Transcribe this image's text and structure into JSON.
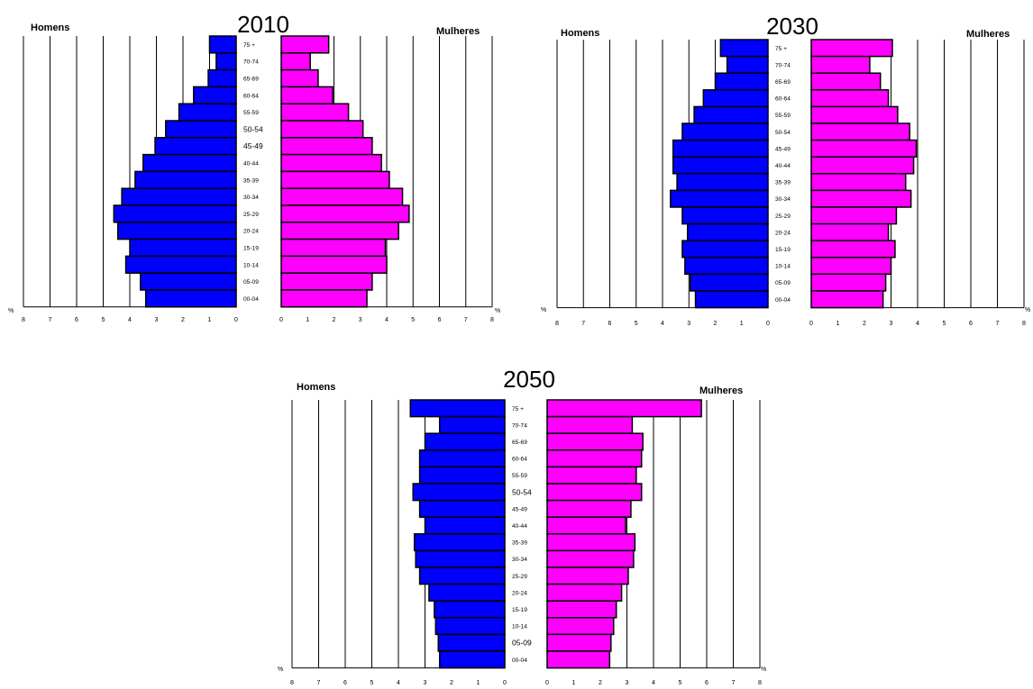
{
  "colors": {
    "male": "#0000ff",
    "female": "#ff00ff",
    "stroke": "#000000",
    "grid": "#000000"
  },
  "chart_data": [
    {
      "type": "bar",
      "title": "2010",
      "left_label": "Homens",
      "right_label": "Mulheres",
      "unit_label": "%",
      "xlim": [
        0,
        8
      ],
      "ticks": [
        "0",
        "1",
        "2",
        "3",
        "4",
        "5",
        "6",
        "7",
        "8"
      ],
      "ticks_reversed": [
        "8",
        "7",
        "6",
        "5",
        "4",
        "3",
        "2",
        "1",
        "0"
      ],
      "categories": [
        "75 +",
        "70-74",
        "65-69",
        "60-64",
        "55-59",
        "50-54",
        "45-49",
        "40-44",
        "35-39",
        "30-34",
        "25-29",
        "20-24",
        "15-19",
        "10-14",
        "05-09",
        "00-04"
      ],
      "series": [
        {
          "name": "Homens",
          "values": [
            1.0,
            0.75,
            1.05,
            1.6,
            2.15,
            2.65,
            3.05,
            3.5,
            3.8,
            4.3,
            4.6,
            4.45,
            4.0,
            4.15,
            3.6,
            3.4
          ]
        },
        {
          "name": "Mulheres",
          "values": [
            1.8,
            1.1,
            1.4,
            1.95,
            2.55,
            3.1,
            3.45,
            3.8,
            4.1,
            4.6,
            4.85,
            4.45,
            3.95,
            4.0,
            3.45,
            3.25
          ]
        }
      ]
    },
    {
      "type": "bar",
      "title": "2030",
      "left_label": "Homens",
      "right_label": "Mulheres",
      "unit_label": "%",
      "xlim": [
        0,
        8
      ],
      "ticks": [
        "0",
        "1",
        "2",
        "3",
        "4",
        "5",
        "6",
        "7",
        "8"
      ],
      "ticks_reversed": [
        "8",
        "7",
        "6",
        "5",
        "4",
        "3",
        "2",
        "1",
        "0"
      ],
      "categories": [
        "75 +",
        "70-74",
        "65-69",
        "60-64",
        "55-59",
        "50-54",
        "45-49",
        "40-44",
        "35-39",
        "30-34",
        "25-29",
        "20-24",
        "15-19",
        "10-14",
        "05-09",
        "00-04"
      ],
      "series": [
        {
          "name": "Homens",
          "values": [
            1.8,
            1.55,
            2.0,
            2.45,
            2.8,
            3.25,
            3.6,
            3.6,
            3.45,
            3.7,
            3.25,
            3.05,
            3.25,
            3.15,
            2.95,
            2.75
          ]
        },
        {
          "name": "Mulheres",
          "values": [
            3.05,
            2.2,
            2.6,
            2.9,
            3.25,
            3.7,
            3.95,
            3.85,
            3.55,
            3.75,
            3.2,
            2.9,
            3.15,
            3.0,
            2.8,
            2.7
          ]
        }
      ]
    },
    {
      "type": "bar",
      "title": "2050",
      "left_label": "Homens",
      "right_label": "Mulheres",
      "unit_label": "%",
      "xlim": [
        0,
        8
      ],
      "ticks": [
        "0",
        "1",
        "2",
        "3",
        "4",
        "5",
        "6",
        "7",
        "8"
      ],
      "ticks_reversed": [
        "8",
        "7",
        "6",
        "5",
        "4",
        "3",
        "2",
        "1",
        "0"
      ],
      "categories": [
        "75 +",
        "70-74",
        "65-69",
        "60-64",
        "55-59",
        "50-54",
        "45-49",
        "40-44",
        "35-39",
        "30-34",
        "25-29",
        "20-24",
        "15-19",
        "10-14",
        "05-09",
        "00-04"
      ],
      "series": [
        {
          "name": "Homens",
          "values": [
            3.55,
            2.45,
            3.0,
            3.2,
            3.2,
            3.45,
            3.2,
            3.0,
            3.4,
            3.35,
            3.2,
            2.85,
            2.65,
            2.6,
            2.5,
            2.45
          ]
        },
        {
          "name": "Mulheres",
          "values": [
            5.8,
            3.2,
            3.6,
            3.55,
            3.35,
            3.55,
            3.15,
            2.95,
            3.3,
            3.25,
            3.05,
            2.8,
            2.6,
            2.5,
            2.4,
            2.35
          ]
        }
      ]
    }
  ]
}
